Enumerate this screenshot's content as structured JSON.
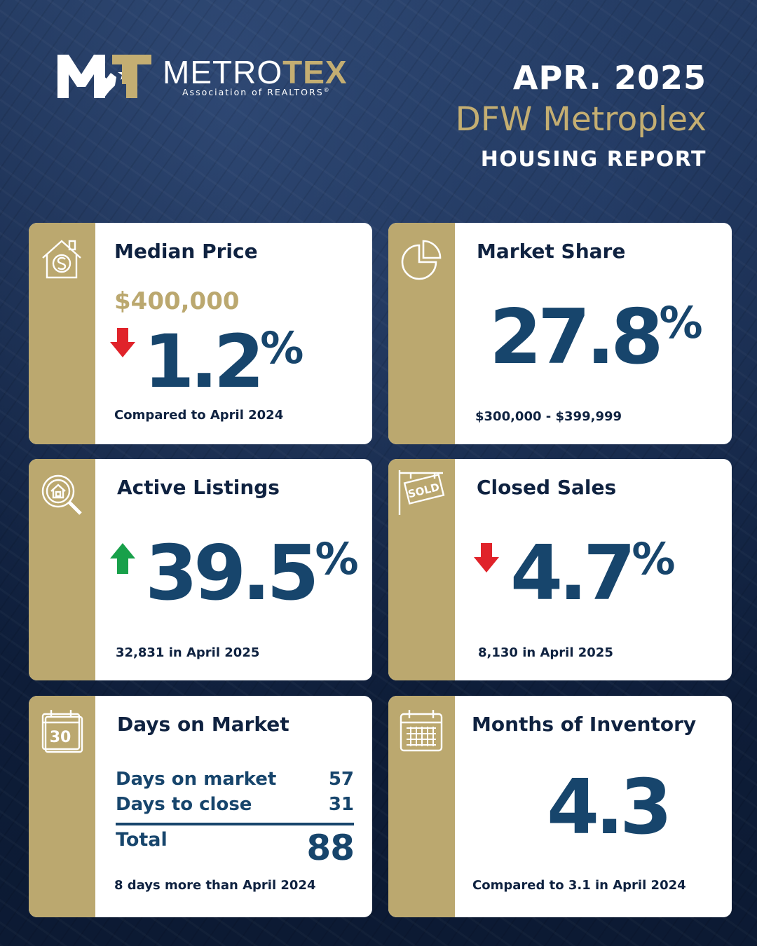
{
  "brand": {
    "name_light": "METRO",
    "name_bold": "TEX",
    "tagline": "Association of REALTORS",
    "trademark": "®",
    "logo_mark_text": "MT",
    "colors": {
      "gold": "#bba86f",
      "navy": "#0f2240",
      "blue": "#17456c",
      "down": "#e0232a",
      "up": "#18a04a"
    }
  },
  "header": {
    "date": "APR. 2025",
    "region": "DFW Metroplex",
    "report": "HOUSING REPORT"
  },
  "cards": {
    "median_price": {
      "title": "Median Price",
      "icon": "house-dollar-icon",
      "price": "$400,000",
      "direction": "down",
      "change": "1.2",
      "unit": "%",
      "note": "Compared to April 2024"
    },
    "market_share": {
      "title": "Market Share",
      "icon": "pie-chart-icon",
      "value": "27.8",
      "unit": "%",
      "note": "$300,000 - $399,999"
    },
    "active_listings": {
      "title": "Active Listings",
      "icon": "house-search-icon",
      "direction": "up",
      "change": "39.5",
      "unit": "%",
      "note": "32,831 in April 2025"
    },
    "closed_sales": {
      "title": "Closed Sales",
      "icon": "sold-sign-icon",
      "sign_text": "SOLD",
      "direction": "down",
      "change": "4.7",
      "unit": "%",
      "note": "8,130 in April 2025"
    },
    "days_on_market": {
      "title": "Days on Market",
      "icon": "calendar-30-icon",
      "icon_text": "30",
      "rows": [
        {
          "label": "Days on market",
          "value": "57"
        },
        {
          "label": "Days to close",
          "value": "31"
        }
      ],
      "total_label": "Total",
      "total_value": "88",
      "note": "8 days more than April 2024"
    },
    "months_inventory": {
      "title": "Months of Inventory",
      "icon": "calendar-grid-icon",
      "value": "4.3",
      "note": "Compared to 3.1 in April 2024"
    }
  }
}
